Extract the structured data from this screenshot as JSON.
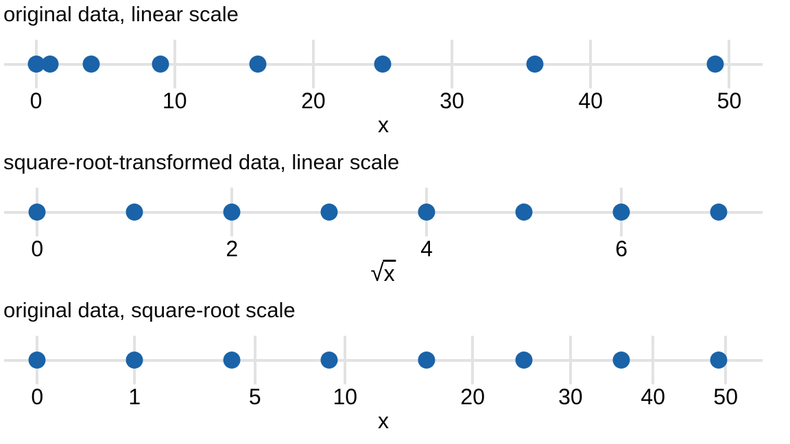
{
  "figure": {
    "background": "#ffffff",
    "point_color": "#1a63a8",
    "grid_color": "#e2e2e2",
    "text_color": "#000000"
  },
  "chart_data": [
    {
      "type": "scatter",
      "title": "original data, linear scale",
      "xlabel": "x",
      "scale": "linear",
      "points_x": [
        0,
        1,
        4,
        9,
        16,
        25,
        36,
        49
      ],
      "tick_values": [
        0,
        10,
        20,
        30,
        40,
        50
      ],
      "tick_labels": [
        "0",
        "10",
        "20",
        "30",
        "40",
        "50"
      ],
      "axis_range_transformed": [
        -2.3,
        52.4
      ],
      "grid": true,
      "legend": false
    },
    {
      "type": "scatter",
      "title": "square-root-transformed data, linear scale",
      "xlabel": "√x",
      "scale": "linear",
      "points_x": [
        0,
        1,
        2,
        3,
        4,
        5,
        6,
        7
      ],
      "tick_values": [
        0,
        2,
        4,
        6
      ],
      "tick_labels": [
        "0",
        "2",
        "4",
        "6"
      ],
      "axis_range_transformed": [
        -0.34,
        7.45
      ],
      "grid": true,
      "legend": false
    },
    {
      "type": "scatter",
      "title": "original data, square-root scale",
      "xlabel": "x",
      "scale": "sqrt",
      "points_x": [
        0,
        1,
        4,
        9,
        16,
        25,
        36,
        49
      ],
      "tick_values": [
        0,
        1,
        5,
        10,
        20,
        30,
        40,
        50
      ],
      "tick_labels": [
        "0",
        "1",
        "5",
        "10",
        "20",
        "30",
        "40",
        "50"
      ],
      "axis_range_transformed": [
        -0.34,
        7.45
      ],
      "grid": true,
      "legend": false
    }
  ]
}
